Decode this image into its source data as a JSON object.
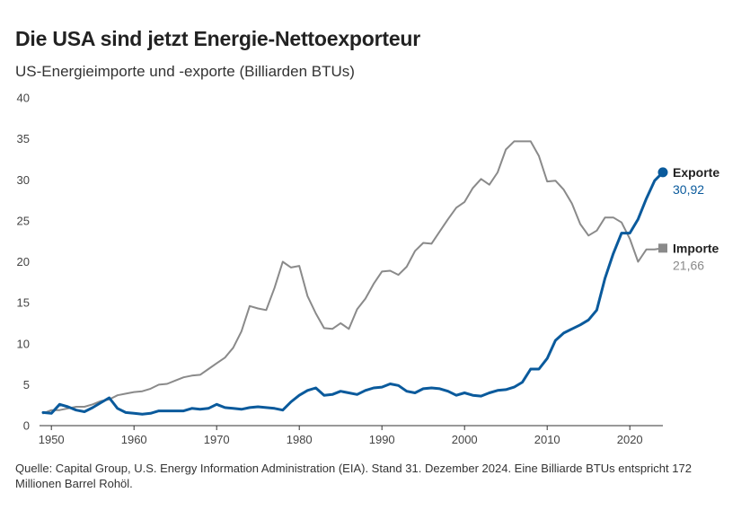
{
  "title": "Die USA sind jetzt Energie-Nettoexporteur",
  "subtitle": "US-Energieimporte und -exporte (Billiarden BTUs)",
  "footer": "Quelle: Capital Group, U.S. Energy Information Administration (EIA). Stand 31. Dezember 2024. Eine Billiarde BTUs entspricht 172 Millionen Barrel Rohöl.",
  "chart_data": {
    "type": "line",
    "title": "Die USA sind jetzt Energie-Nettoexporteur",
    "ylabel": "US-Energieimporte und -exporte (Billiarden BTUs)",
    "xlabel": "",
    "xlim": [
      1949,
      2024
    ],
    "ylim": [
      0,
      40
    ],
    "x_ticks": [
      1950,
      1960,
      1970,
      1980,
      1990,
      2000,
      2010,
      2020
    ],
    "y_ticks": [
      0,
      5,
      10,
      15,
      20,
      25,
      30,
      35,
      40
    ],
    "grid": false,
    "x": [
      1949,
      1950,
      1951,
      1952,
      1953,
      1954,
      1955,
      1956,
      1957,
      1958,
      1959,
      1960,
      1961,
      1962,
      1963,
      1964,
      1965,
      1966,
      1967,
      1968,
      1969,
      1970,
      1971,
      1972,
      1973,
      1974,
      1975,
      1976,
      1977,
      1978,
      1979,
      1980,
      1981,
      1982,
      1983,
      1984,
      1985,
      1986,
      1987,
      1988,
      1989,
      1990,
      1991,
      1992,
      1993,
      1994,
      1995,
      1996,
      1997,
      1998,
      1999,
      2000,
      2001,
      2002,
      2003,
      2004,
      2005,
      2006,
      2007,
      2008,
      2009,
      2010,
      2011,
      2012,
      2013,
      2014,
      2015,
      2016,
      2017,
      2018,
      2019,
      2020,
      2021,
      2022,
      2023,
      2024
    ],
    "series": [
      {
        "name": "Exporte",
        "color": "#0A5A9C",
        "last_value_label": "30,92",
        "values": [
          1.6,
          1.5,
          2.6,
          2.3,
          1.9,
          1.7,
          2.2,
          2.8,
          3.4,
          2.1,
          1.6,
          1.5,
          1.4,
          1.5,
          1.8,
          1.8,
          1.8,
          1.8,
          2.1,
          2.0,
          2.1,
          2.6,
          2.2,
          2.1,
          2.0,
          2.2,
          2.3,
          2.2,
          2.1,
          1.9,
          2.9,
          3.7,
          4.3,
          4.6,
          3.7,
          3.8,
          4.2,
          4.0,
          3.8,
          4.3,
          4.6,
          4.7,
          5.1,
          4.9,
          4.2,
          4.0,
          4.5,
          4.6,
          4.5,
          4.2,
          3.7,
          4.0,
          3.7,
          3.6,
          4.0,
          4.3,
          4.4,
          4.7,
          5.3,
          6.9,
          6.9,
          8.2,
          10.4,
          11.3,
          11.8,
          12.3,
          12.9,
          14.1,
          18.0,
          21.0,
          23.5,
          23.5,
          25.2,
          27.7,
          29.9,
          30.92
        ]
      },
      {
        "name": "Importe",
        "color": "#8A8A8A",
        "last_value_label": "21,66",
        "values": [
          1.5,
          1.9,
          1.9,
          2.1,
          2.3,
          2.3,
          2.6,
          3.0,
          3.2,
          3.7,
          3.9,
          4.1,
          4.2,
          4.5,
          5.0,
          5.1,
          5.5,
          5.9,
          6.1,
          6.2,
          6.9,
          7.6,
          8.3,
          9.5,
          11.5,
          14.6,
          14.3,
          14.1,
          16.8,
          20.0,
          19.3,
          19.5,
          15.8,
          13.7,
          11.9,
          11.8,
          12.5,
          11.8,
          14.2,
          15.5,
          17.3,
          18.8,
          18.9,
          18.4,
          19.4,
          21.3,
          22.3,
          22.2,
          23.7,
          25.2,
          26.6,
          27.3,
          29.0,
          30.1,
          29.4,
          30.9,
          33.7,
          34.7,
          34.7,
          34.7,
          32.9,
          29.8,
          29.9,
          28.8,
          27.1,
          24.6,
          23.2,
          23.8,
          25.4,
          25.4,
          24.8,
          22.8,
          20.0,
          21.5,
          21.5,
          21.66
        ]
      }
    ],
    "legend": "inline-right"
  }
}
